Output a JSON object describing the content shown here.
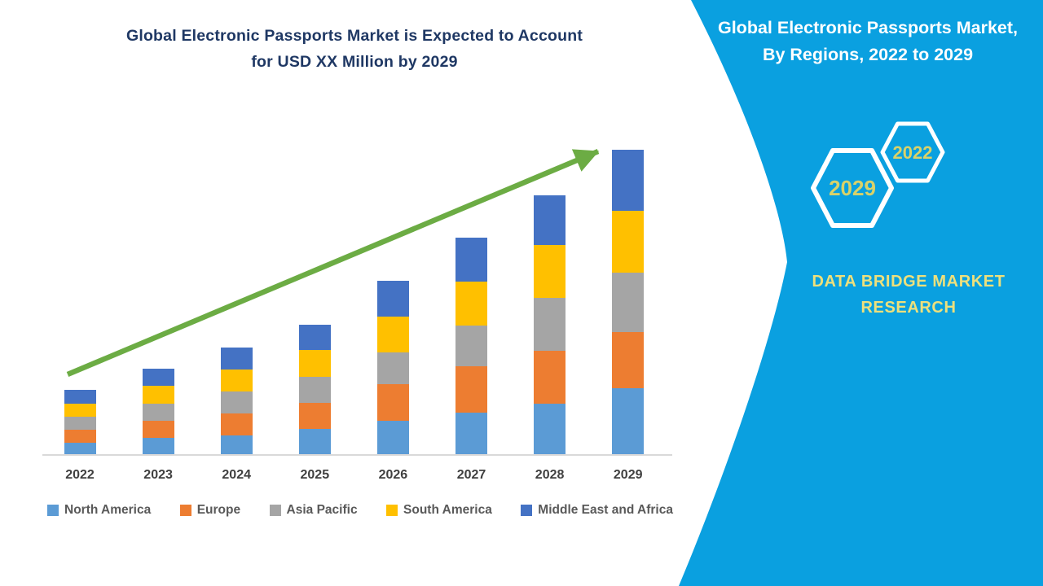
{
  "title": {
    "line1": "Global Electronic Passports Market is Expected to Account",
    "line2": "for USD XX Million by 2029"
  },
  "side_panel": {
    "bg_color": "#0AA0E0",
    "heading_line1": "Global Electronic Passports Market,",
    "heading_line2": "By Regions, 2022 to 2029",
    "hexagon_small_label": "2022",
    "hexagon_large_label": "2029",
    "hex_label_color": "#D9D269",
    "brand_line1": "DATA BRIDGE MARKET",
    "brand_line2": "RESEARCH",
    "brand_color": "#EDE07C"
  },
  "chart_data": {
    "type": "bar",
    "stacked": true,
    "title": "Global Electronic Passports Market is Expected to Account for USD XX Million by 2029",
    "xlabel": "",
    "ylabel": "",
    "value_axis_visible": false,
    "values_note": "No numeric axis shown in figure (USD XX Million); values are relative segment heights estimated from pixels",
    "grid": false,
    "legend_position": "bottom",
    "categories": [
      "2022",
      "2023",
      "2024",
      "2025",
      "2026",
      "2027",
      "2028",
      "2029"
    ],
    "series": [
      {
        "name": "North America",
        "color": "#5B9BD5",
        "values": [
          15,
          21,
          24,
          32,
          42,
          52,
          63,
          82
        ]
      },
      {
        "name": "Europe",
        "color": "#ED7D31",
        "values": [
          16,
          21,
          27,
          32,
          45,
          57,
          65,
          69
        ]
      },
      {
        "name": "Asia Pacific",
        "color": "#A5A5A5",
        "values": [
          16,
          21,
          27,
          32,
          39,
          50,
          65,
          73
        ]
      },
      {
        "name": "South America",
        "color": "#FFC000",
        "values": [
          16,
          22,
          27,
          33,
          44,
          54,
          65,
          76
        ]
      },
      {
        "name": "Middle East and Africa",
        "color": "#4472C4",
        "values": [
          17,
          21,
          27,
          31,
          44,
          54,
          61,
          75
        ]
      }
    ],
    "stack_totals": [
      80,
      106,
      132,
      160,
      214,
      267,
      319,
      375
    ],
    "trend_arrow": {
      "color": "#6CAC44",
      "from": [
        83,
        460
      ],
      "to": [
        734,
        186
      ]
    }
  }
}
